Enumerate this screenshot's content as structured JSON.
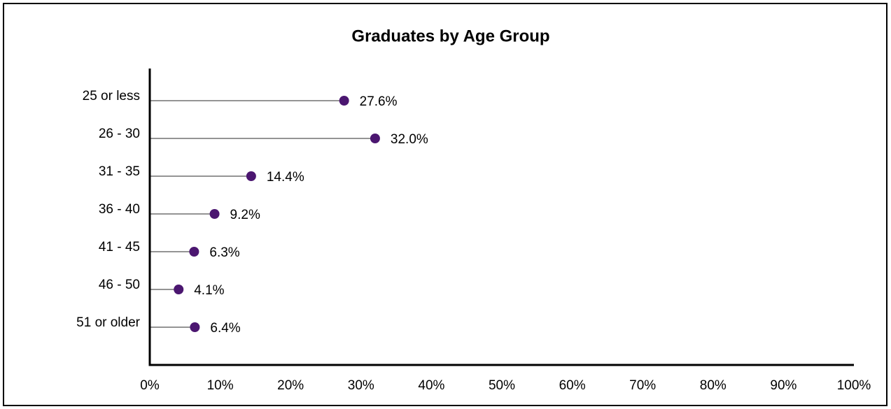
{
  "chart_data": {
    "type": "lollipop",
    "title": "Graduates by Age Group",
    "categories": [
      "25 or less",
      "26 - 30",
      "31 - 35",
      "36 - 40",
      "41 - 45",
      "46 - 50",
      "51 or older"
    ],
    "values": [
      27.6,
      32.0,
      14.4,
      9.2,
      6.3,
      4.1,
      6.4
    ],
    "value_labels": [
      "27.6%",
      "32.0%",
      "14.4%",
      "9.2%",
      "6.3%",
      "4.1%",
      "6.4%"
    ],
    "color": "#4b1670",
    "xlim": [
      0,
      100
    ],
    "xticks": [
      {
        "value": 0,
        "label": "0%"
      },
      {
        "value": 10,
        "label": "10%"
      },
      {
        "value": 20,
        "label": "20%"
      },
      {
        "value": 30,
        "label": "30%"
      },
      {
        "value": 40,
        "label": "40%"
      },
      {
        "value": 50,
        "label": "50%"
      },
      {
        "value": 60,
        "label": "60%"
      },
      {
        "value": 70,
        "label": "70%"
      },
      {
        "value": 80,
        "label": "80%"
      },
      {
        "value": 90,
        "label": "90%"
      },
      {
        "value": 100,
        "label": "100%"
      }
    ],
    "grid": false
  }
}
